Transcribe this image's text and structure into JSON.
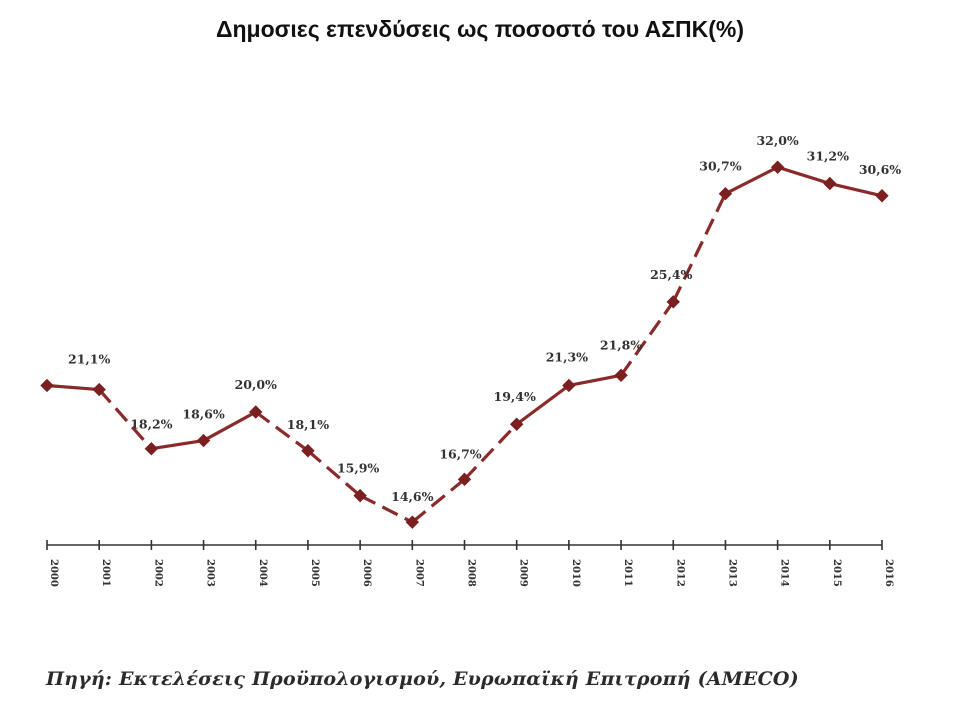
{
  "title": "Δημοσιες επενδύσεις ως ποσοστό του ΑΣΠΚ(%)",
  "source": "Πηγή: Εκτελέσεις Προϋπολογισμού, Ευρωπαϊκή Επιτροπή (AMECO)",
  "colors": {
    "line": "#8b2a2a",
    "marker": "#7a2020",
    "axis": "#333333",
    "label": "#333333"
  },
  "chart_data": {
    "type": "line",
    "categories": [
      "2000",
      "2001",
      "2002",
      "2003",
      "2004",
      "2005",
      "2006",
      "2007",
      "2008",
      "2009",
      "2010",
      "2011",
      "2012",
      "2013",
      "2014",
      "2015",
      "2016"
    ],
    "series": [
      {
        "values": [
          21.3,
          21.1,
          18.2,
          18.6,
          20.0,
          18.1,
          15.9,
          14.6,
          16.7,
          19.4,
          21.3,
          21.8,
          25.4,
          30.7,
          32.0,
          31.2,
          30.6
        ]
      }
    ],
    "data_labels": [
      "",
      "21,1%",
      "18,2%",
      "18,6%",
      "20,0%",
      "18,1%",
      "15,9%",
      "14,6%",
      "16,7%",
      "19,4%",
      "21,3%",
      "21,8%",
      "25,4%",
      "30,7%",
      "32,0%",
      "31,2%",
      "30,6%"
    ],
    "line_style": [
      "solid",
      "dashed",
      "solid",
      "solid",
      "dashed",
      "dashed",
      "dashed",
      "dashed",
      "dashed",
      "solid",
      "solid",
      "dashed",
      "dashed",
      "solid",
      "solid",
      "solid"
    ],
    "marker": "diamond",
    "grid": false,
    "legend": "none",
    "xlabel": "",
    "ylabel": ""
  }
}
